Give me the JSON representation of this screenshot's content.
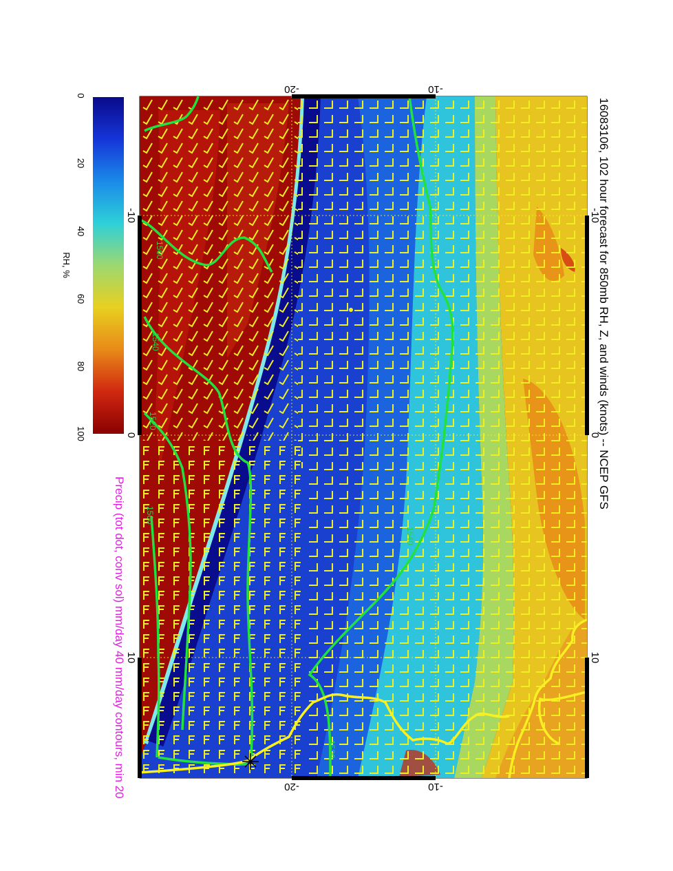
{
  "title": "16083106, 102 hour forecast for 850mb RH, Z, and winds (knots) -- NCEP GFS",
  "subtitle": "Precip (tot dot, conv sol) mm/day 40 mm/day contours, min 20",
  "colorbar": {
    "label": "RH, %",
    "ticks": [
      "0",
      "20",
      "40",
      "60",
      "80",
      "100"
    ],
    "colors": [
      "#0a0a8a",
      "#1535d8",
      "#1a8ae8",
      "#2ed0d8",
      "#9cd870",
      "#e8d020",
      "#e88a18",
      "#d02810",
      "#8a0000"
    ]
  },
  "axes": {
    "top_ticks": [
      "-20",
      "-10"
    ],
    "bottom_ticks": [
      "-20",
      "-10"
    ],
    "left_ticks": [
      "-10",
      "0",
      "10"
    ],
    "right_ticks": [
      "-10",
      "0",
      "10"
    ]
  },
  "contour_labels": [
    "1560",
    "1540",
    "1520",
    "1500",
    "1540",
    "1500"
  ],
  "colors": {
    "rh_dry": "#8a0000",
    "rh_moist": "#1020a0",
    "contour": "#22e040",
    "wind_barb": "#f0f020",
    "coastline": "#f8f020",
    "grid": "#f0f020"
  }
}
